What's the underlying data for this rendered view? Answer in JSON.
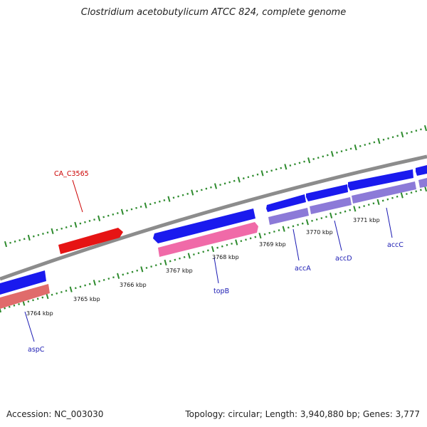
{
  "title": "Clostridium acetobutylicum ATCC 824, complete genome",
  "accession": "Accession: NC_003030",
  "stats": "Topology: circular; Length: 3,940,880 bp; Genes: 3,777",
  "colors": {
    "backbone": "#8c8c8c",
    "tick": "#2e8b2e",
    "forward_gene": "#1a1aee",
    "reverse_gene": "#8c7ad8",
    "reverse_top": "#f06aa8",
    "reverse_pink": "#e06b6b",
    "red_gene": "#e61414",
    "label_blue": "#1a1ab3",
    "label_red": "#cc0000"
  },
  "scale_labels": [
    "3764 kbp",
    "3765 kbp",
    "3766 kbp",
    "3767 kbp",
    "3768 kbp",
    "3769 kbp",
    "3770 kbp",
    "3771 kbp"
  ],
  "gene_labels": [
    {
      "text": "aspC",
      "color": "label_blue"
    },
    {
      "text": "topB",
      "color": "label_blue"
    },
    {
      "text": "accA",
      "color": "label_blue"
    },
    {
      "text": "accD",
      "color": "label_blue"
    },
    {
      "text": "accC",
      "color": "label_blue"
    },
    {
      "text": "CA_C3565",
      "color": "label_red"
    }
  ]
}
